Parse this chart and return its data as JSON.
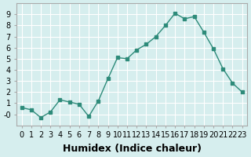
{
  "x": [
    0,
    1,
    2,
    3,
    4,
    5,
    6,
    7,
    8,
    9,
    10,
    11,
    12,
    13,
    14,
    15,
    16,
    17,
    18,
    19,
    20,
    21,
    22,
    23
  ],
  "y": [
    0.6,
    0.4,
    -0.3,
    0.2,
    1.3,
    1.1,
    0.9,
    -0.2,
    1.2,
    3.2,
    5.1,
    5.0,
    5.8,
    6.3,
    7.0,
    8.0,
    9.1,
    8.6,
    8.8,
    7.4,
    5.9,
    4.1,
    2.8,
    2.0
  ],
  "line_color": "#2e8b7a",
  "marker_color": "#2e8b7a",
  "bg_color": "#d6eeee",
  "grid_color": "#ffffff",
  "xlabel": "Humidex (Indice chaleur)",
  "xlabel_fontsize": 9,
  "tick_fontsize": 7,
  "ylim": [
    -1,
    10
  ],
  "xlim": [
    -0.5,
    23.5
  ],
  "yticks": [
    0,
    1,
    2,
    3,
    4,
    5,
    6,
    7,
    8,
    9
  ],
  "xticks": [
    0,
    1,
    2,
    3,
    4,
    5,
    6,
    7,
    8,
    9,
    10,
    11,
    12,
    13,
    14,
    15,
    16,
    17,
    18,
    19,
    20,
    21,
    22,
    23
  ]
}
